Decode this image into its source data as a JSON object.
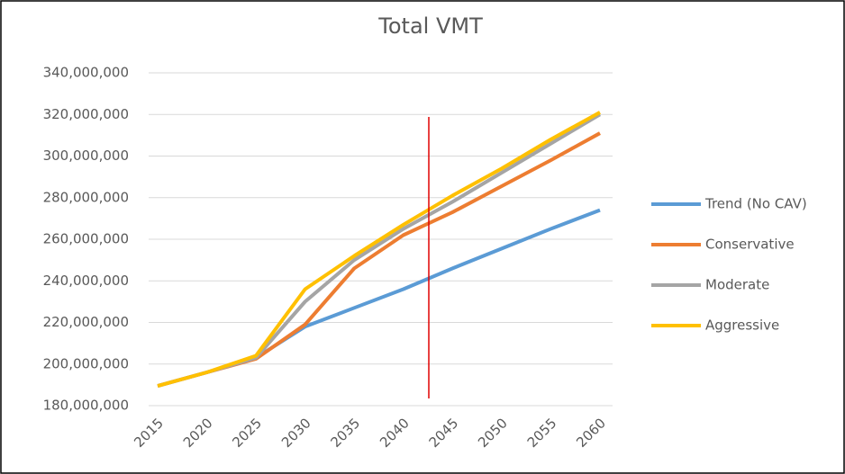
{
  "chart_data": {
    "type": "line",
    "title": "Total VMT",
    "categories": [
      "2015",
      "2020",
      "2025",
      "2030",
      "2035",
      "2040",
      "2045",
      "2050",
      "2055",
      "2060"
    ],
    "series": [
      {
        "name": "Trend (No CAV)",
        "color": "#5b9bd5",
        "values": [
          189500000,
          196000000,
          203000000,
          218000000,
          227000000,
          236000000,
          246000000,
          255500000,
          265000000,
          274000000
        ]
      },
      {
        "name": "Conservative",
        "color": "#ed7d31",
        "values": [
          189500000,
          196000000,
          202500000,
          219000000,
          246000000,
          262000000,
          273000000,
          285500000,
          298000000,
          311000000
        ]
      },
      {
        "name": "Moderate",
        "color": "#a5a5a5",
        "values": [
          189500000,
          196000000,
          203000000,
          230000000,
          250000000,
          265000000,
          278000000,
          292000000,
          306000000,
          320000000
        ]
      },
      {
        "name": "Aggressive",
        "color": "#ffc000",
        "values": [
          189500000,
          196000000,
          204000000,
          236000000,
          252000000,
          267000000,
          281000000,
          294000000,
          308000000,
          321000000
        ]
      }
    ],
    "ylim": [
      180000000,
      340000000
    ],
    "yticks": [
      {
        "value": 180000000,
        "label": "180,000,000"
      },
      {
        "value": 200000000,
        "label": "200,000,000"
      },
      {
        "value": 220000000,
        "label": "220,000,000"
      },
      {
        "value": 240000000,
        "label": "240,000,000"
      },
      {
        "value": 260000000,
        "label": "260,000,000"
      },
      {
        "value": 280000000,
        "label": "280,000,000"
      },
      {
        "value": 300000000,
        "label": "300,000,000"
      },
      {
        "value": 320000000,
        "label": "320,000,000"
      },
      {
        "value": 340000000,
        "label": "340,000,000"
      }
    ],
    "grid": true,
    "legend": "right"
  }
}
